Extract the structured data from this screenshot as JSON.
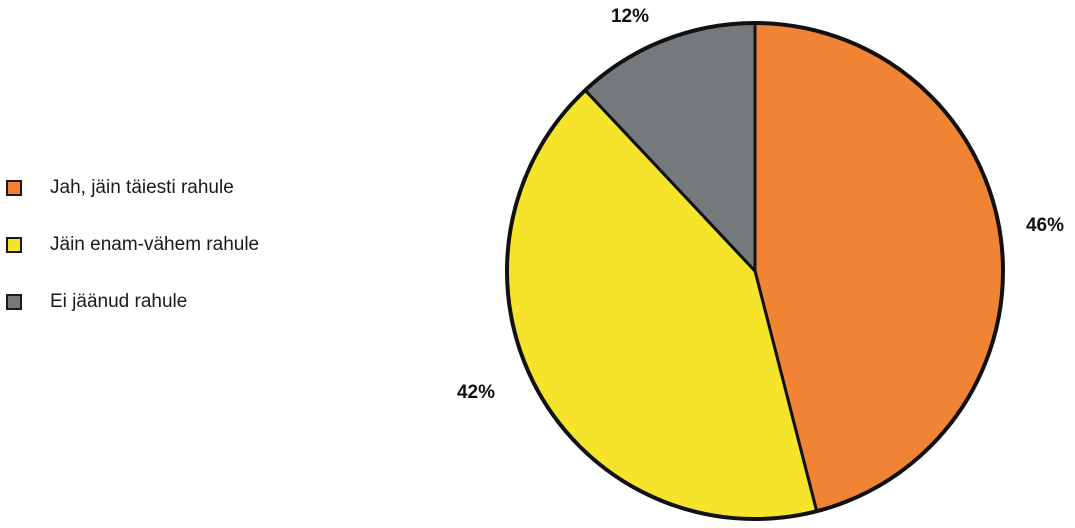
{
  "chart_data": {
    "type": "pie",
    "title": "",
    "legend_position": "left",
    "slices": [
      {
        "label": "Jah, jäin täiesti rahule",
        "value": 46,
        "value_label": "46%",
        "color": "#f08434"
      },
      {
        "label": "Jäin enam-vähem rahule",
        "value": 42,
        "value_label": "42%",
        "color": "#f5e42a"
      },
      {
        "label": "Ei jäänud rahule",
        "value": 12,
        "value_label": "12%",
        "color": "#747a7c"
      }
    ]
  }
}
